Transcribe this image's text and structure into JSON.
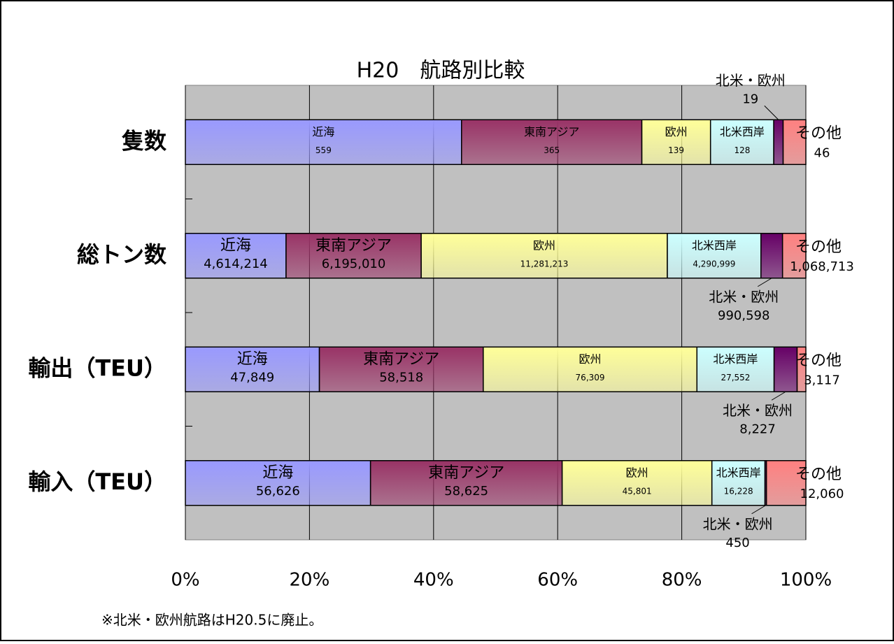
{
  "chart_data": {
    "type": "bar",
    "orientation": "horizontal",
    "stacked": "percent",
    "title": "H20　航路別比較",
    "note": "※北米・欧州航路はH20.5に廃止。",
    "categories": [
      "隻数",
      "総トン数",
      "輸出（TEU）",
      "輸入（TEU）"
    ],
    "series": [
      {
        "name": "近海",
        "color": "#9999ff",
        "values": [
          559,
          4614214,
          47849,
          56626
        ],
        "value_labels": [
          "559",
          "4,614,214",
          "47,849",
          "56,626"
        ]
      },
      {
        "name": "東南アジア",
        "color": "#993366",
        "values": [
          365,
          6195010,
          58518,
          58625
        ],
        "value_labels": [
          "365",
          "6,195,010",
          "58,518",
          "58,625"
        ]
      },
      {
        "name": "欧州",
        "color": "#ffff99",
        "values": [
          139,
          11281213,
          76309,
          45801
        ],
        "value_labels": [
          "139",
          "11,281,213",
          "76,309",
          "45,801"
        ]
      },
      {
        "name": "北米西岸",
        "color": "#ccffff",
        "values": [
          128,
          4290999,
          27552,
          16228
        ],
        "value_labels": [
          "128",
          "4,290,999",
          "27,552",
          "16,228"
        ]
      },
      {
        "name": "北米・欧州",
        "color": "#660066",
        "values": [
          19,
          990598,
          8227,
          450
        ],
        "value_labels": [
          "19",
          "990,598",
          "8,227",
          "450"
        ]
      },
      {
        "name": "その他",
        "color": "#ff8080",
        "values": [
          46,
          1068713,
          3117,
          12060
        ],
        "value_labels": [
          "46",
          "1,068,713",
          "3,117",
          "12,060"
        ]
      }
    ],
    "xlim": [
      0,
      100
    ],
    "xticks": [
      {
        "value": 0,
        "label": "0%"
      },
      {
        "value": 20,
        "label": "20%"
      },
      {
        "value": 40,
        "label": "40%"
      },
      {
        "value": 60,
        "label": "60%"
      },
      {
        "value": 80,
        "label": "80%"
      },
      {
        "value": 100,
        "label": "100%"
      }
    ],
    "grid": true
  }
}
